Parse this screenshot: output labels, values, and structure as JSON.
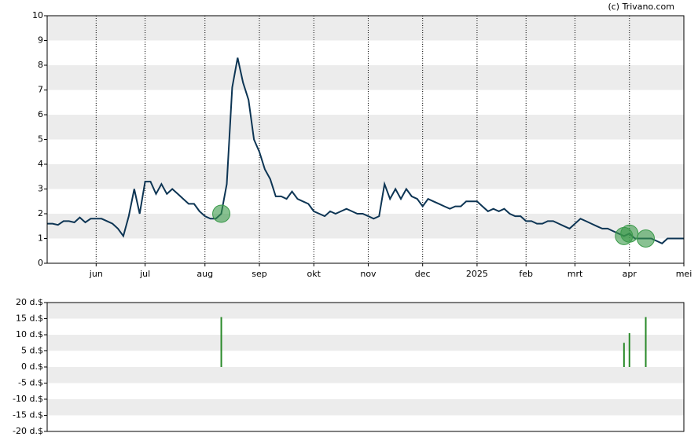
{
  "chart_data": [
    {
      "type": "line",
      "source": "(c) Trivano.com",
      "categories": [
        null,
        null,
        null,
        null,
        null,
        null,
        null,
        null,
        null,
        "jun",
        null,
        null,
        null,
        null,
        null,
        null,
        null,
        null,
        "jul",
        null,
        null,
        null,
        null,
        null,
        null,
        null,
        null,
        null,
        null,
        "aug",
        null,
        null,
        null,
        null,
        null,
        null,
        null,
        null,
        null,
        "sep",
        null,
        null,
        null,
        null,
        null,
        null,
        null,
        null,
        null,
        "okt",
        null,
        null,
        null,
        null,
        null,
        null,
        null,
        null,
        null,
        "nov",
        null,
        null,
        null,
        null,
        null,
        null,
        null,
        null,
        null,
        "dec",
        null,
        null,
        null,
        null,
        null,
        null,
        null,
        null,
        null,
        "2025",
        null,
        null,
        null,
        null,
        null,
        null,
        null,
        null,
        "feb",
        null,
        null,
        null,
        null,
        null,
        null,
        null,
        null,
        "mrt",
        null,
        null,
        null,
        null,
        null,
        null,
        null,
        null,
        null,
        "apr",
        null,
        null,
        null,
        null,
        null,
        null,
        null,
        null,
        null,
        "mei"
      ],
      "values": [
        1.6,
        1.6,
        1.55,
        1.7,
        1.7,
        1.65,
        1.85,
        1.65,
        1.8,
        1.8,
        1.8,
        1.7,
        1.6,
        1.4,
        1.1,
        1.9,
        3.0,
        2.0,
        3.3,
        3.3,
        2.8,
        3.2,
        2.8,
        3.0,
        2.8,
        2.6,
        2.4,
        2.4,
        2.1,
        1.9,
        1.8,
        1.8,
        2.0,
        3.2,
        7.1,
        8.3,
        7.3,
        6.6,
        5.0,
        4.5,
        3.8,
        3.4,
        2.7,
        2.7,
        2.6,
        2.9,
        2.6,
        2.5,
        2.4,
        2.1,
        2.0,
        1.9,
        2.1,
        2.0,
        2.1,
        2.2,
        2.1,
        2.0,
        2.0,
        1.9,
        1.8,
        1.9,
        3.2,
        2.6,
        3.0,
        2.6,
        3.0,
        2.7,
        2.6,
        2.3,
        2.6,
        2.5,
        2.4,
        2.3,
        2.2,
        2.3,
        2.3,
        2.5,
        2.5,
        2.5,
        2.3,
        2.1,
        2.2,
        2.1,
        2.2,
        2.0,
        1.9,
        1.9,
        1.7,
        1.7,
        1.6,
        1.6,
        1.7,
        1.7,
        1.6,
        1.5,
        1.4,
        1.6,
        1.8,
        1.7,
        1.6,
        1.5,
        1.4,
        1.4,
        1.3,
        1.2,
        1.1,
        1.2,
        1.0,
        1.0,
        1.0,
        1.0,
        0.9,
        0.8,
        1.0,
        1.0,
        1.0,
        1.0
      ],
      "color": "#0d3554",
      "marker_color": "#3a9a4a",
      "ylim": [
        0,
        10
      ],
      "yticks": [
        0,
        1,
        2,
        3,
        4,
        5,
        6,
        7,
        8,
        9,
        10
      ],
      "grid": true,
      "bands": true
    },
    {
      "type": "bar",
      "values": [
        null,
        null,
        null,
        null,
        null,
        null,
        null,
        null,
        null,
        null,
        null,
        null,
        null,
        null,
        null,
        null,
        null,
        null,
        null,
        null,
        null,
        null,
        null,
        null,
        null,
        null,
        null,
        null,
        null,
        null,
        null,
        null,
        15.5,
        null,
        null,
        null,
        null,
        null,
        null,
        null,
        null,
        null,
        null,
        null,
        null,
        null,
        null,
        null,
        null,
        null,
        null,
        null,
        null,
        null,
        null,
        null,
        null,
        null,
        null,
        null,
        null,
        null,
        null,
        null,
        null,
        null,
        null,
        null,
        null,
        null,
        null,
        null,
        null,
        null,
        null,
        null,
        null,
        null,
        null,
        null,
        null,
        null,
        null,
        null,
        null,
        null,
        null,
        null,
        null,
        null,
        null,
        null,
        null,
        null,
        null,
        null,
        null,
        null,
        null,
        null,
        null,
        null,
        null,
        null,
        null,
        null,
        7.5,
        10.5,
        null,
        null,
        15.5,
        null,
        null,
        null,
        null,
        null,
        null,
        null
      ],
      "color": "#2a8a2a",
      "ylim": [
        -20,
        20
      ],
      "yticks": [
        {
          "value": -20,
          "label": "-20 d.$"
        },
        {
          "value": -15,
          "label": "-15 d.$"
        },
        {
          "value": -10,
          "label": "-10 d.$"
        },
        {
          "value": -5,
          "label": "-5 d.$"
        },
        {
          "value": 0,
          "label": "0 d.$"
        },
        {
          "value": 5,
          "label": "5 d.$"
        },
        {
          "value": 10,
          "label": "10 d.$"
        },
        {
          "value": 15,
          "label": "15 d.$"
        },
        {
          "value": 20,
          "label": "20 d.$"
        }
      ],
      "bands": true
    }
  ]
}
